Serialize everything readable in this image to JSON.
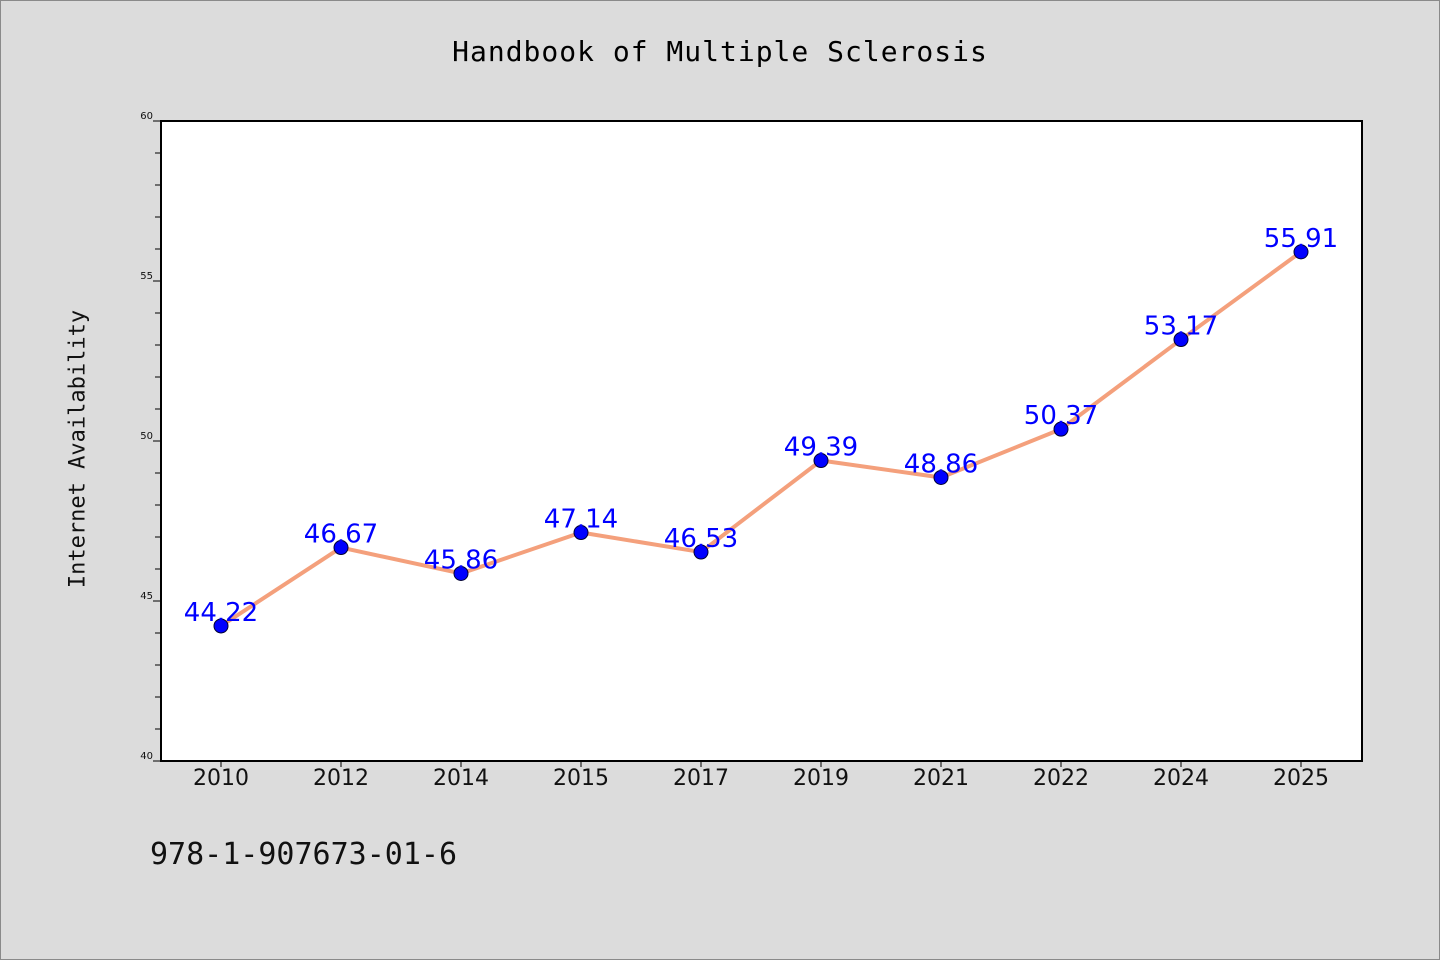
{
  "chart_data": {
    "type": "line",
    "title": "Handbook of Multiple Sclerosis",
    "xlabel": "",
    "ylabel": "Internet Availability",
    "categories": [
      "2010",
      "2012",
      "2014",
      "2015",
      "2017",
      "2019",
      "2021",
      "2022",
      "2024",
      "2025"
    ],
    "series": [
      {
        "values": [
          44.22,
          46.67,
          45.86,
          47.14,
          46.53,
          49.39,
          48.86,
          50.37,
          53.17,
          55.91
        ],
        "labels": [
          "44.22",
          "46.67",
          "45.86",
          "47.14",
          "46.53",
          "49.39",
          "48.86",
          "50.37",
          "53.17",
          "55.91"
        ],
        "line_color": "#f4a07c",
        "marker_color": "#0000ff"
      }
    ],
    "ylim": [
      40,
      60
    ],
    "y_ticks": [
      "40",
      "45",
      "50",
      "55",
      "60"
    ],
    "y_minor_step": 1,
    "grid": false,
    "legend": "none"
  },
  "footer": {
    "isbn": "978-1-907673-01-6"
  },
  "colors": {
    "background": "#dcdcdc",
    "plot_background": "#ffffff",
    "data_label": "#0000ff"
  }
}
